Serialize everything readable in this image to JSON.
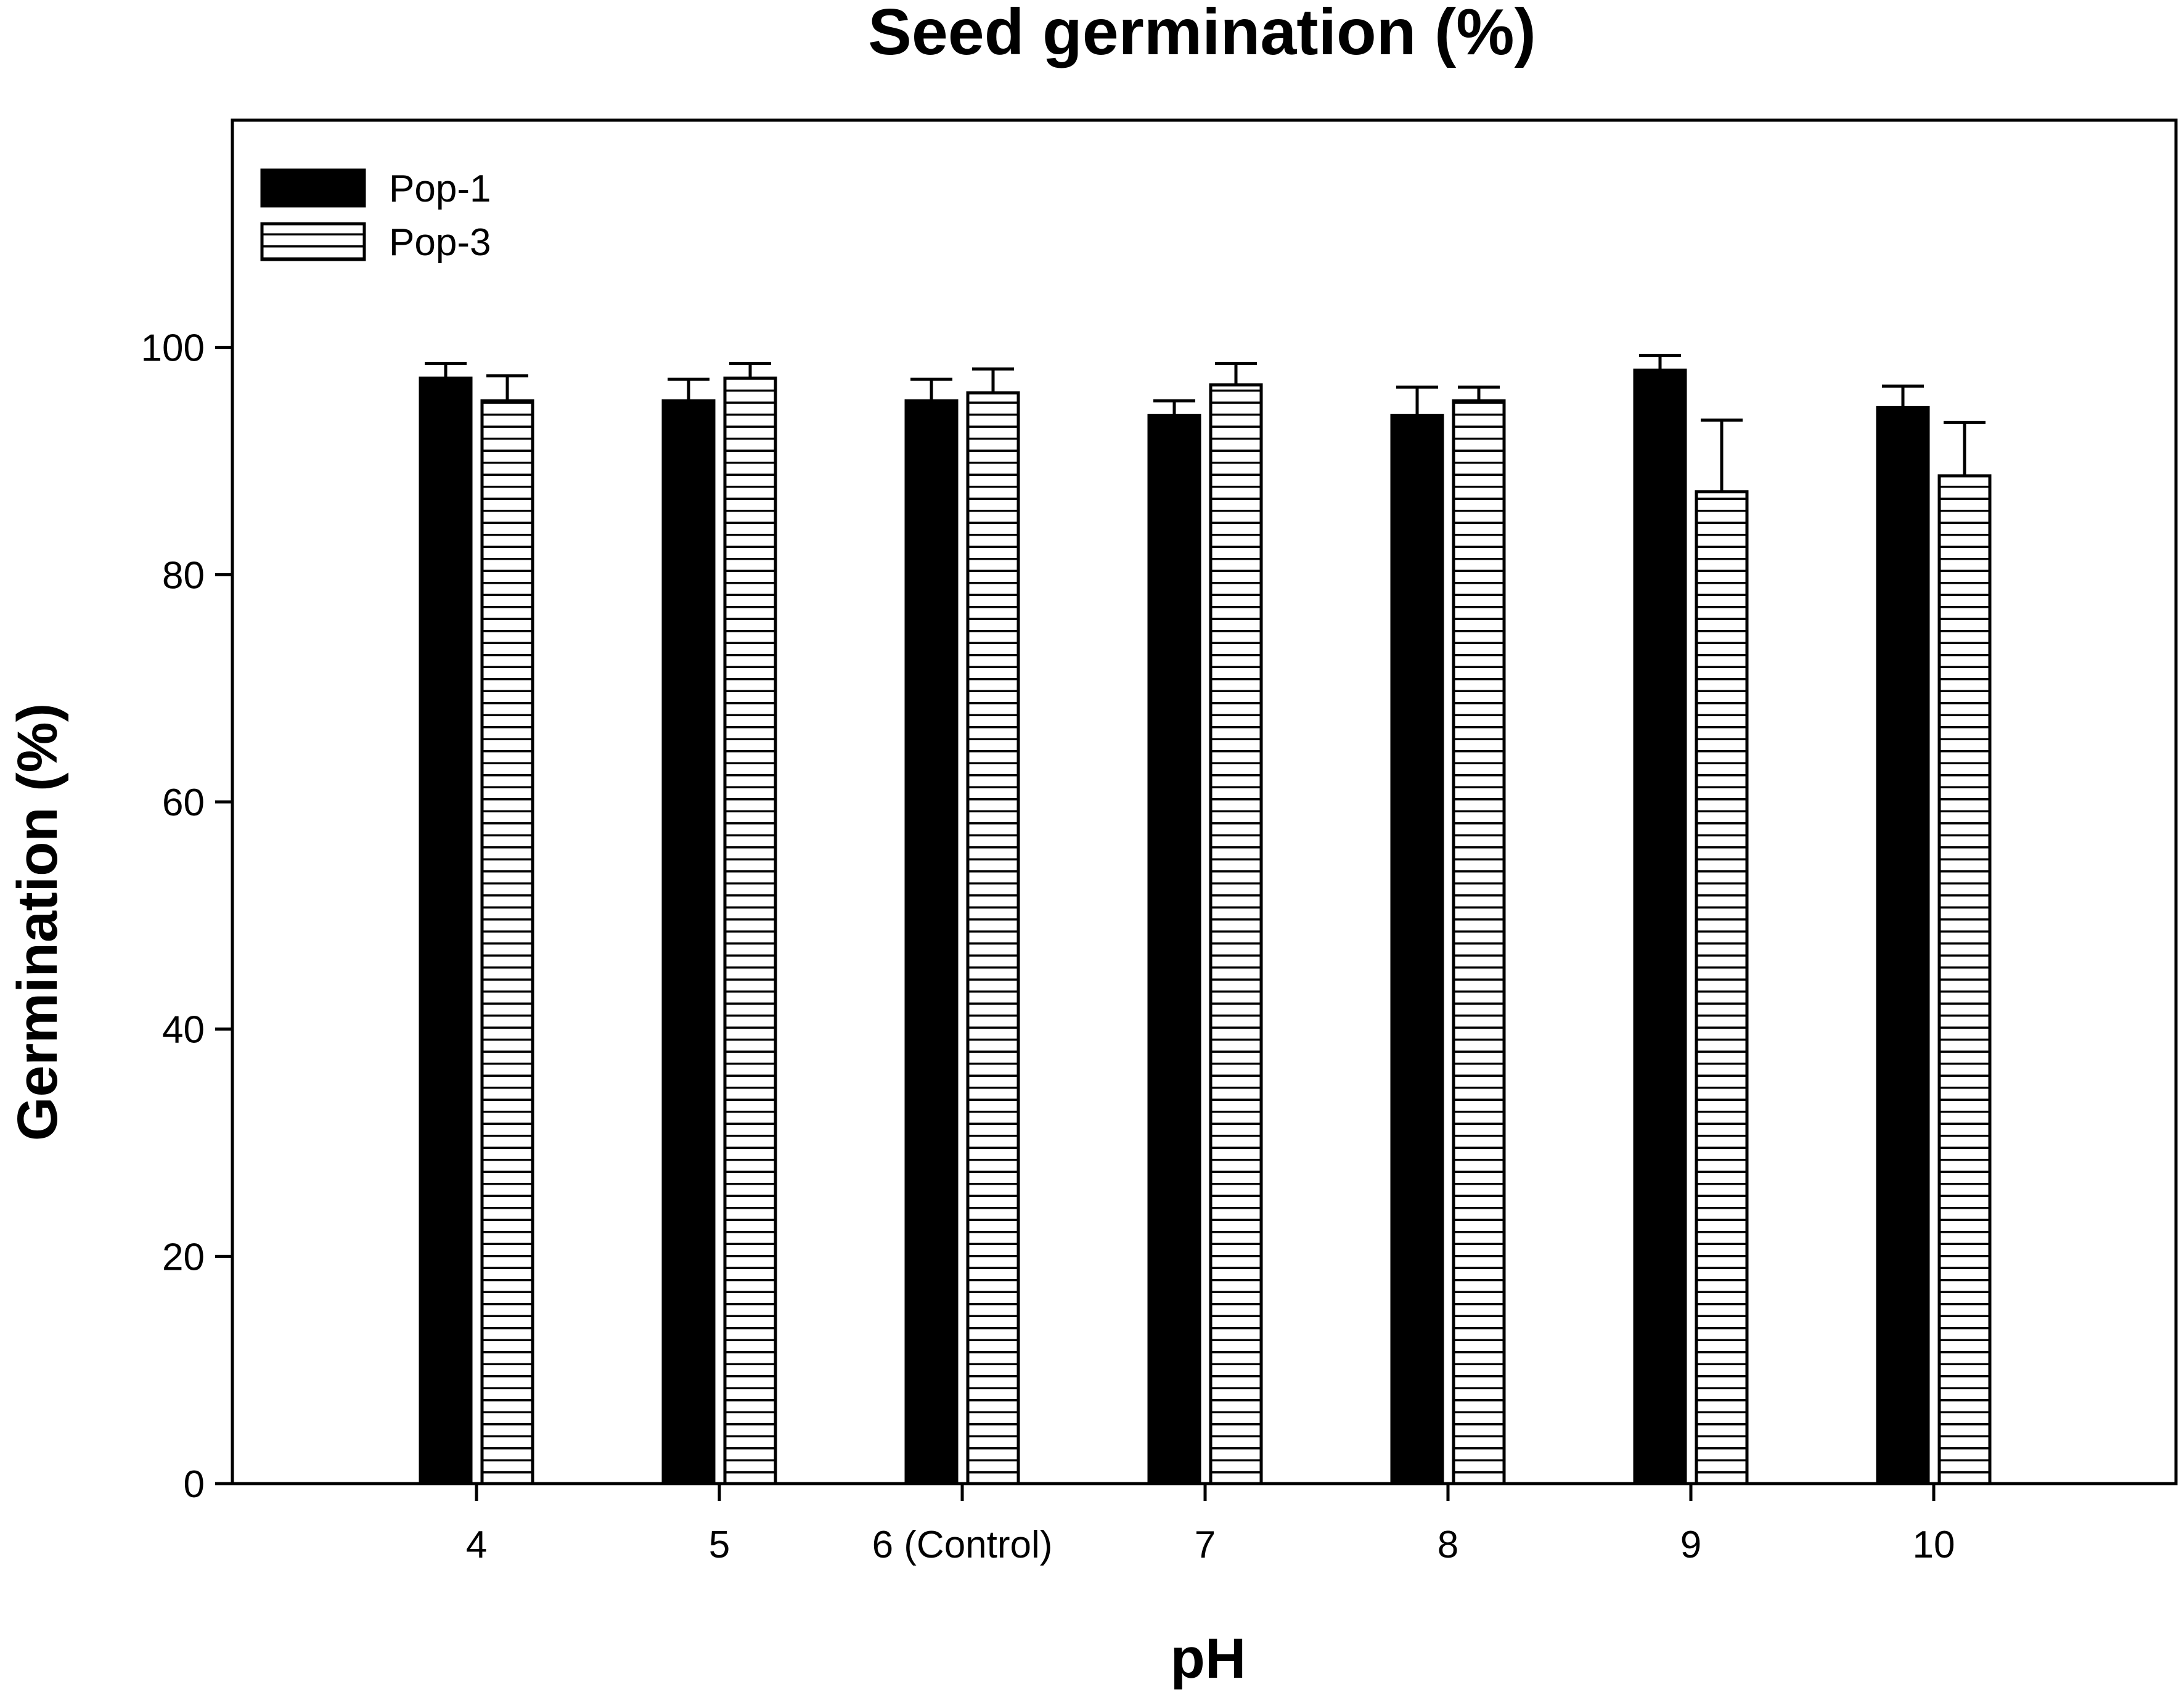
{
  "chart_data": {
    "type": "bar",
    "title": "Seed germination (%)",
    "xlabel": "pH",
    "ylabel": "Germination (%)",
    "categories": [
      "4",
      "5",
      "6 (Control)",
      "7",
      "8",
      "9",
      "10"
    ],
    "ylim": [
      0,
      120
    ],
    "yticks": [
      0,
      20,
      40,
      60,
      80,
      100
    ],
    "grid": false,
    "legend_position": "top-left",
    "series": [
      {
        "name": "Pop-1",
        "fill": "solid",
        "color": "#000000",
        "values": [
          97.3,
          95.3,
          95.3,
          94.0,
          94.0,
          98.0,
          94.7
        ],
        "errors": [
          1.3,
          1.9,
          1.9,
          1.3,
          2.5,
          1.3,
          1.9
        ]
      },
      {
        "name": "Pop-3",
        "fill": "horizontal-stripes",
        "color": "#ffffff",
        "values": [
          95.3,
          97.3,
          96.0,
          96.7,
          95.3,
          87.3,
          88.7
        ],
        "errors": [
          2.2,
          1.3,
          2.1,
          1.9,
          1.2,
          6.3,
          4.7
        ]
      }
    ]
  }
}
